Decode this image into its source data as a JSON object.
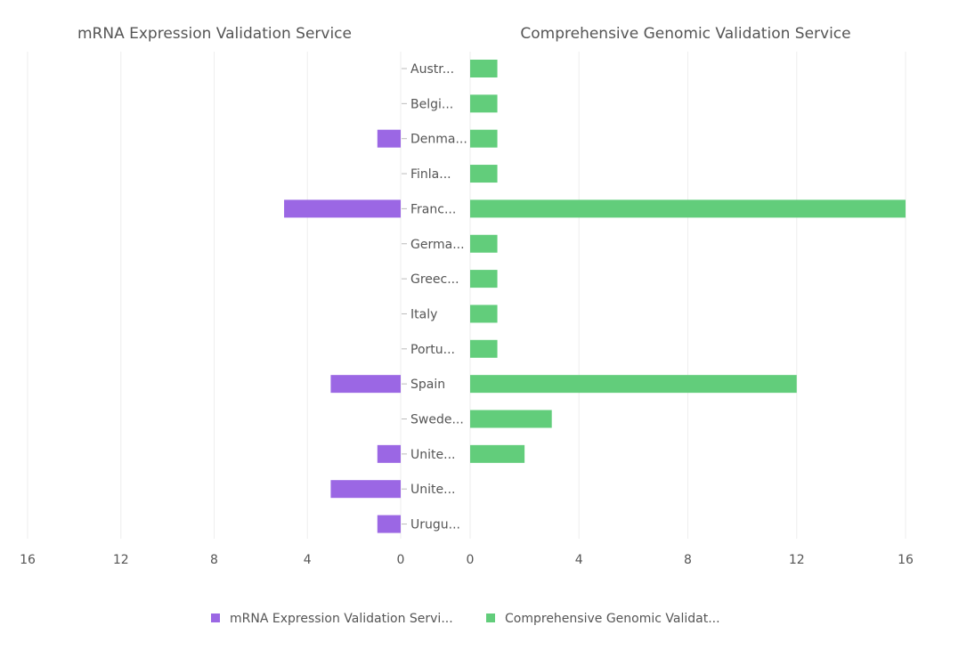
{
  "chart_data": {
    "type": "bar",
    "orientation": "horizontal-butterfly",
    "categories": [
      "Austr...",
      "Belgi...",
      "Denma...",
      "Finla...",
      "Franc...",
      "Germa...",
      "Greec...",
      "Italy",
      "Portu...",
      "Spain",
      "Swede...",
      "Unite...",
      "Unite...",
      "Urugu..."
    ],
    "series": [
      {
        "name": "mRNA Expression Validation Service",
        "legend_label": "mRNA Expression Validation Servi...",
        "color": "#9b67e4",
        "values": [
          0,
          0,
          1,
          0,
          5,
          0,
          0,
          0,
          0,
          3,
          0,
          1,
          3,
          1
        ]
      },
      {
        "name": "Comprehensive Genomic Validation Service",
        "legend_label": "Comprehensive Genomic Validat...",
        "color": "#62cd7b",
        "values": [
          1,
          1,
          1,
          1,
          16,
          1,
          1,
          1,
          1,
          12,
          3,
          2,
          0,
          0
        ]
      }
    ],
    "left_ticks": [
      "16",
      "12",
      "8",
      "4",
      "0"
    ],
    "right_ticks": [
      "0",
      "4",
      "8",
      "12",
      "16"
    ],
    "xlim": [
      0,
      16
    ],
    "grid": true,
    "legend_position": "bottom"
  }
}
